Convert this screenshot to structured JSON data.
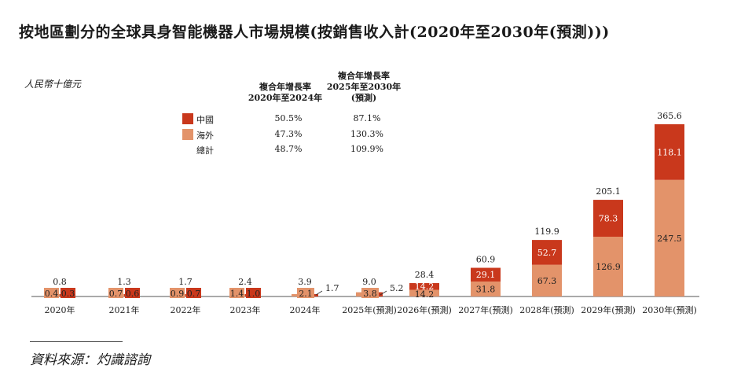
{
  "chart_data": {
    "type": "bar",
    "stacked": true,
    "title": "按地區劃分的全球具身智能機器人市場規模(按銷售收入計(2020年至2030年(預測)))",
    "ylabel": "人民幣十億元",
    "xlabel": "",
    "categories": [
      "2020年",
      "2021年",
      "2022年",
      "2023年",
      "2024年",
      "2025年(預測)",
      "2026年(預測)",
      "2027年(預測)",
      "2028年(預測)",
      "2029年(預測)",
      "2030年(預測)"
    ],
    "series": [
      {
        "name": "海外",
        "color": "#E3936A",
        "values": [
          0.4,
          0.7,
          0.9,
          1.4,
          2.1,
          3.8,
          14.2,
          31.8,
          67.3,
          126.9,
          247.5
        ]
      },
      {
        "name": "中國",
        "color": "#C9381C",
        "values": [
          0.3,
          0.6,
          0.7,
          1.0,
          1.7,
          5.2,
          14.2,
          29.1,
          52.7,
          78.3,
          118.1
        ]
      }
    ],
    "totals": [
      "0.8",
      "1.3",
      "1.7",
      "2.4",
      "3.9",
      "9.0",
      "28.4",
      "60.9",
      "119.9",
      "205.1",
      "365.6"
    ],
    "seg_labels": {
      "overseas": [
        "0.4",
        "0.7",
        "0.9",
        "1.4",
        "2.1",
        "3.8",
        "14.2",
        "31.8",
        "67.3",
        "126.9",
        "247.5"
      ],
      "china": [
        "0.3",
        "0.6",
        "0.7",
        "1.0",
        "1.7",
        "5.2",
        "14.2",
        "29.1",
        "52.7",
        "78.3",
        "118.1"
      ]
    },
    "ylim": [
      0,
      370
    ],
    "cagr": {
      "header1": [
        "複合年增長率",
        "2020年至2024年"
      ],
      "header2": [
        "複合年增長率",
        "2025年至2030年",
        "(預測)"
      ],
      "rows": [
        {
          "name": "中國",
          "color": "#C9381C",
          "v1": "50.5%",
          "v2": "87.1%"
        },
        {
          "name": "海外",
          "color": "#E3936A",
          "v1": "47.3%",
          "v2": "130.3%"
        },
        {
          "name": "總計",
          "color": "",
          "v1": "48.7%",
          "v2": "109.9%"
        }
      ]
    }
  },
  "source": "資料來源：灼識諮詢"
}
